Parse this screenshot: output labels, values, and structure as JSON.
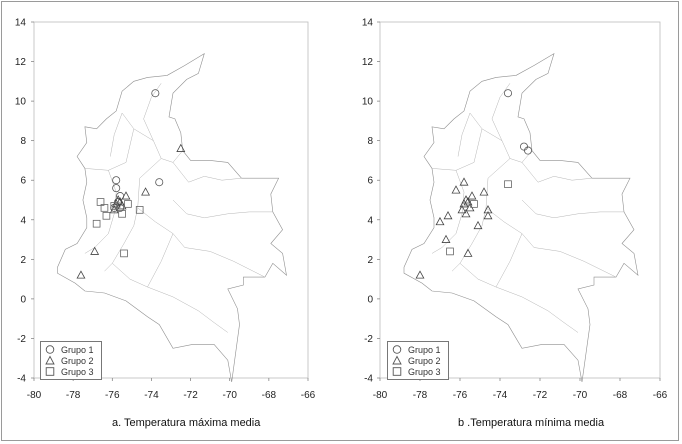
{
  "chart_data": [
    {
      "type": "scatter",
      "caption": "a. Temperatura máxima media",
      "xlim": [
        -80,
        -66
      ],
      "ylim": [
        -4,
        14
      ],
      "x_ticks": [
        "-80",
        "-78",
        "-76",
        "-74",
        "-72",
        "-70",
        "-68",
        "-66"
      ],
      "y_ticks": [
        "14",
        "12",
        "10",
        "8",
        "6",
        "4",
        "2",
        "0",
        "-2",
        "-4"
      ],
      "legend_position": "bottom-left",
      "series": [
        {
          "name": "Grupo 1",
          "marker": "circle",
          "points": [
            [
              -73.8,
              10.4
            ],
            [
              -73.6,
              5.9
            ],
            [
              -75.8,
              6.0
            ],
            [
              -75.8,
              5.6
            ],
            [
              -75.6,
              5.2
            ],
            [
              -75.7,
              4.9
            ],
            [
              -75.9,
              4.6
            ],
            [
              -75.6,
              4.6
            ]
          ]
        },
        {
          "name": "Grupo 2",
          "marker": "triangle",
          "points": [
            [
              -72.5,
              7.6
            ],
            [
              -74.3,
              5.4
            ],
            [
              -75.3,
              5.2
            ],
            [
              -75.7,
              5.0
            ],
            [
              -75.6,
              4.9
            ],
            [
              -75.8,
              4.8
            ],
            [
              -75.5,
              4.7
            ],
            [
              -75.9,
              4.5
            ],
            [
              -76.9,
              2.4
            ],
            [
              -77.6,
              1.2
            ]
          ]
        },
        {
          "name": "Grupo 3",
          "marker": "square",
          "points": [
            [
              -74.6,
              4.5
            ],
            [
              -75.2,
              4.8
            ],
            [
              -75.9,
              4.7
            ],
            [
              -76.3,
              4.2
            ],
            [
              -76.8,
              3.8
            ],
            [
              -76.4,
              4.6
            ],
            [
              -76.6,
              4.9
            ],
            [
              -75.5,
              4.3
            ],
            [
              -75.4,
              2.3
            ]
          ]
        }
      ]
    },
    {
      "type": "scatter",
      "caption": "b .Temperatura mínima media",
      "xlim": [
        -80,
        -66
      ],
      "ylim": [
        -4,
        14
      ],
      "x_ticks": [
        "-80",
        "-78",
        "-76",
        "-74",
        "-72",
        "-70",
        "-68",
        "-66"
      ],
      "y_ticks": [
        "14",
        "12",
        "10",
        "8",
        "6",
        "4",
        "2",
        "0",
        "-2",
        "-4"
      ],
      "legend_position": "bottom-left",
      "series": [
        {
          "name": "Grupo 1",
          "marker": "circle",
          "points": [
            [
              -73.6,
              10.4
            ],
            [
              -72.8,
              7.7
            ],
            [
              -72.6,
              7.5
            ]
          ]
        },
        {
          "name": "Grupo 2",
          "marker": "triangle",
          "points": [
            [
              -75.8,
              5.9
            ],
            [
              -76.2,
              5.5
            ],
            [
              -74.8,
              5.4
            ],
            [
              -75.4,
              5.2
            ],
            [
              -75.7,
              5.0
            ],
            [
              -75.6,
              4.9
            ],
            [
              -75.8,
              4.8
            ],
            [
              -75.5,
              4.6
            ],
            [
              -75.9,
              4.5
            ],
            [
              -75.7,
              4.3
            ],
            [
              -74.6,
              4.5
            ],
            [
              -74.6,
              4.2
            ],
            [
              -76.6,
              4.2
            ],
            [
              -77.0,
              3.9
            ],
            [
              -75.1,
              3.7
            ],
            [
              -76.7,
              3.0
            ],
            [
              -75.6,
              2.3
            ],
            [
              -78.0,
              1.2
            ]
          ]
        },
        {
          "name": "Grupo 3",
          "marker": "square",
          "points": [
            [
              -73.6,
              5.8
            ],
            [
              -75.3,
              4.8
            ],
            [
              -76.5,
              2.4
            ]
          ]
        }
      ]
    }
  ]
}
